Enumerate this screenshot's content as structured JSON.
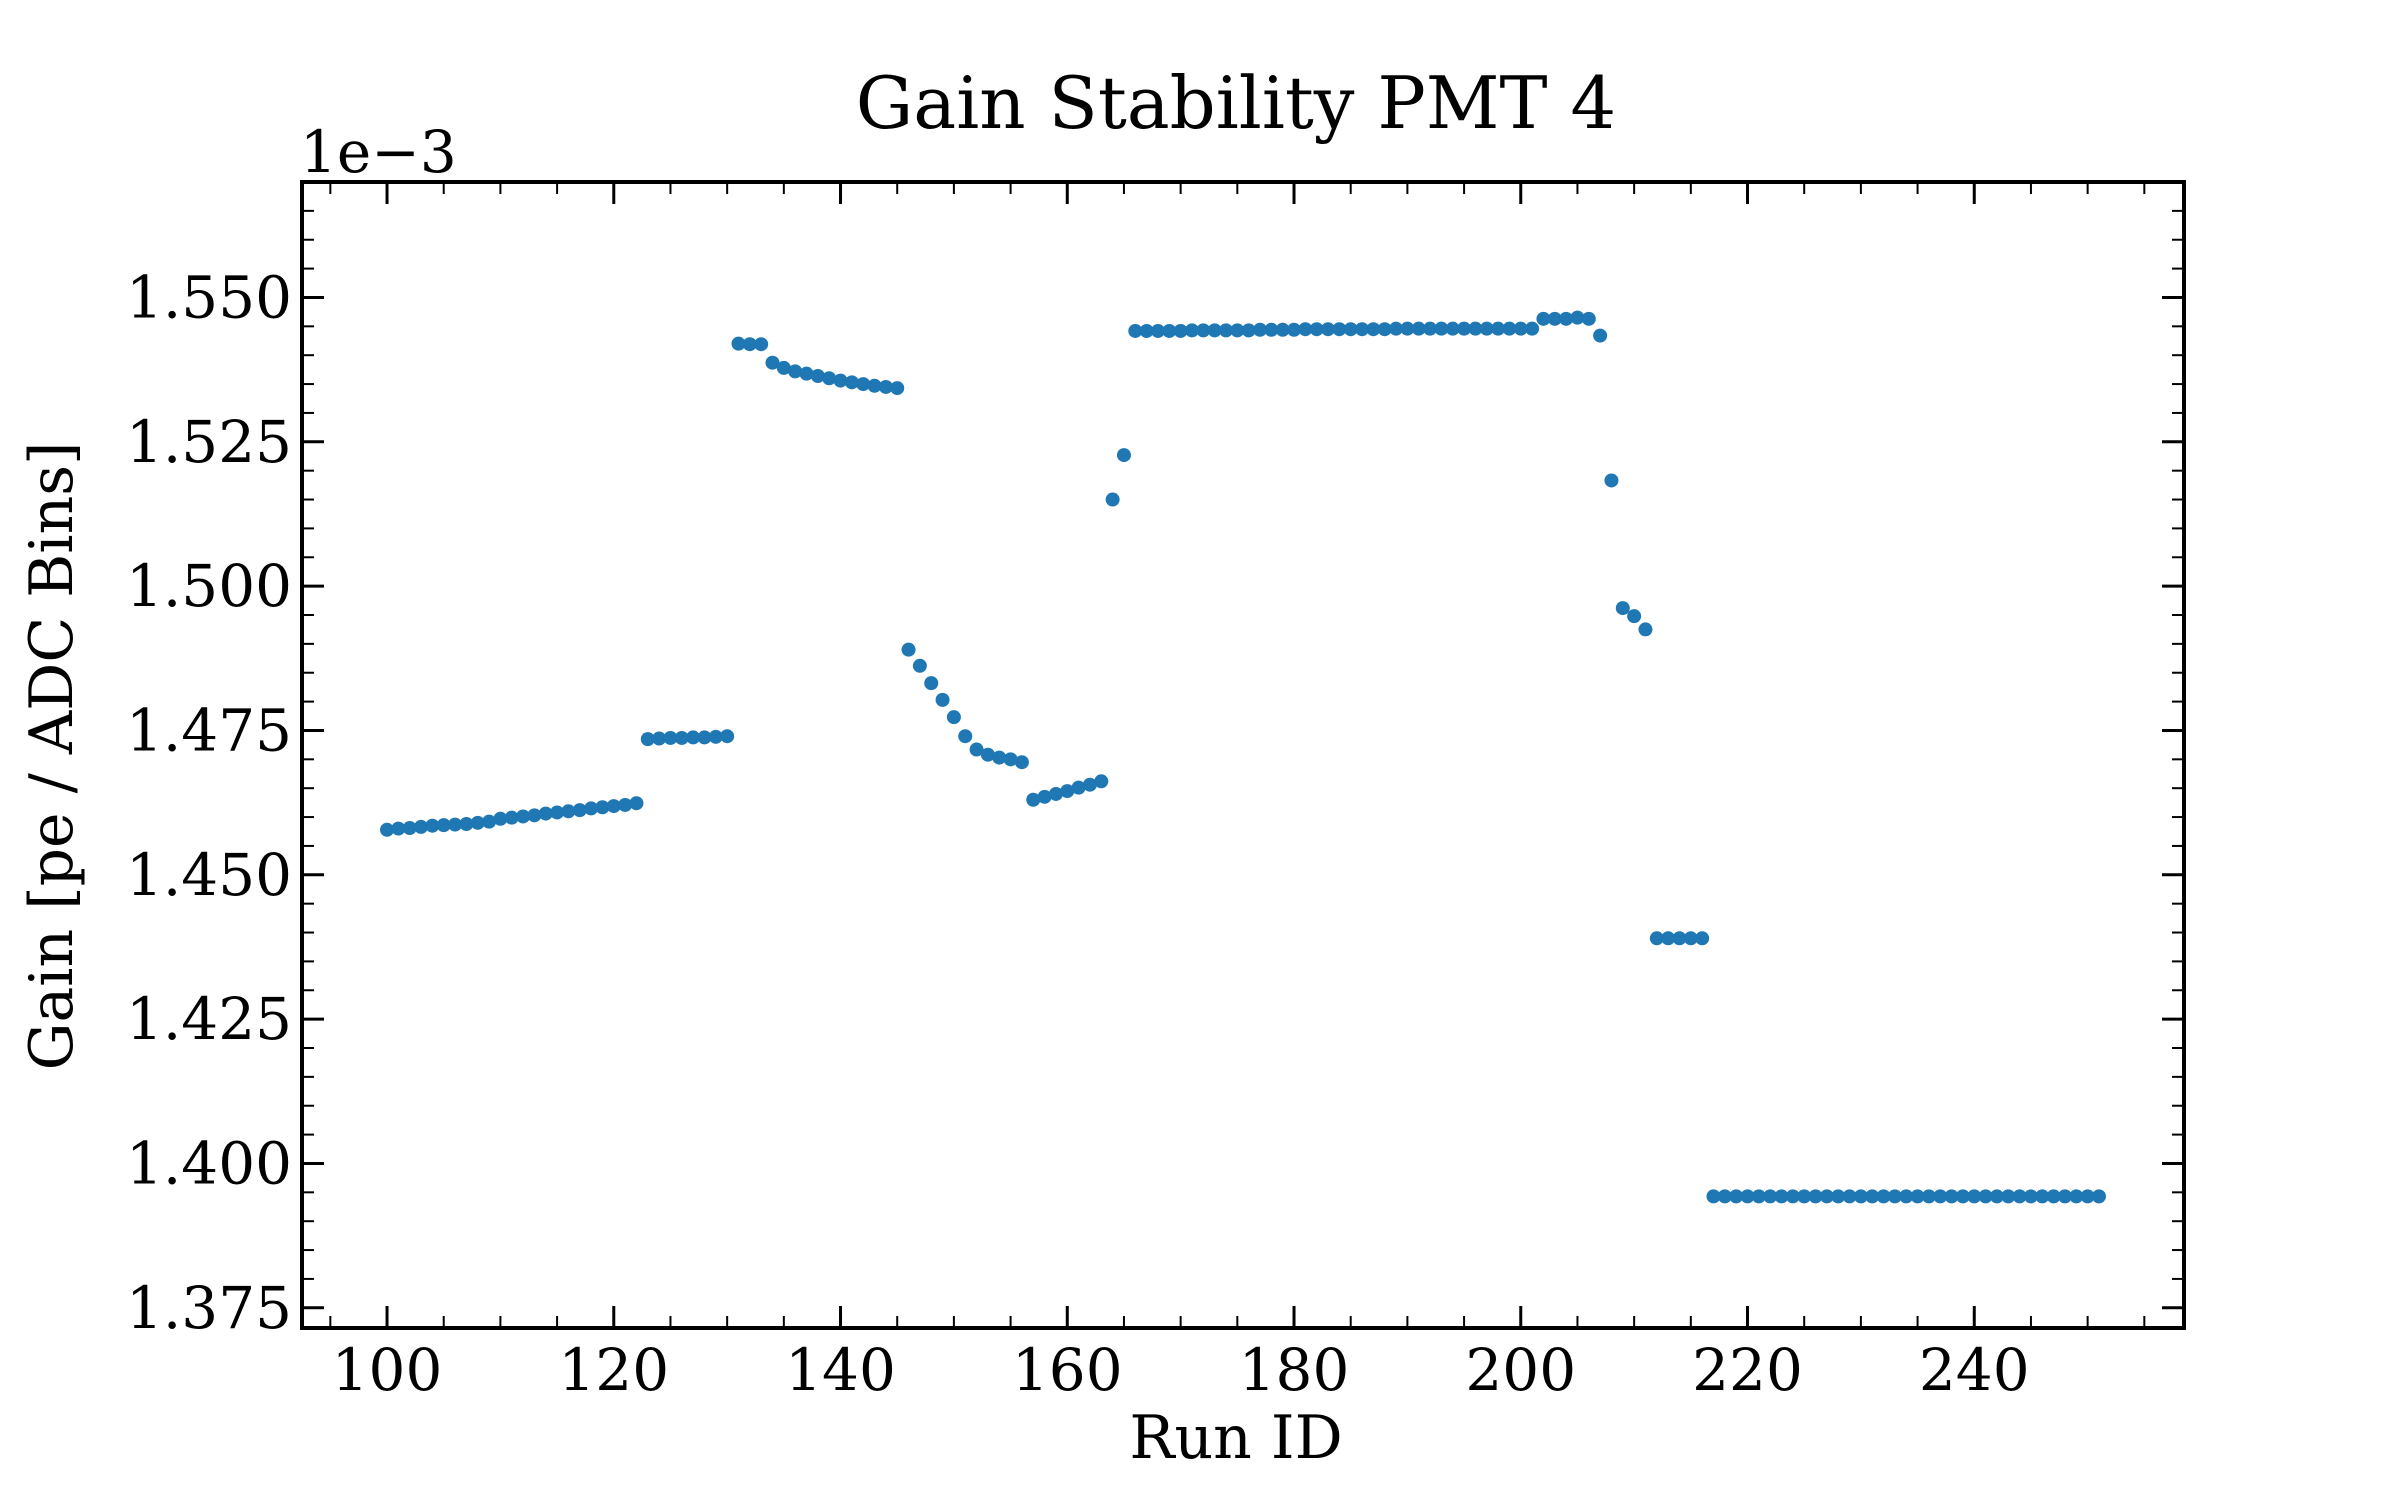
{
  "chart_data": {
    "type": "scatter",
    "title": "Gain Stability PMT 4",
    "xlabel": "Run ID",
    "ylabel": "Gain [pe / ADC Bins]",
    "y_offset_text": "1e−3",
    "xlim": [
      92.5,
      258.5
    ],
    "ylim": [
      1.3715,
      1.57
    ],
    "x_ticks": [
      100,
      120,
      140,
      160,
      180,
      200,
      220,
      240
    ],
    "x_tick_labels": [
      "100",
      "120",
      "140",
      "160",
      "180",
      "200",
      "220",
      "240"
    ],
    "y_ticks": [
      1.375,
      1.4,
      1.425,
      1.45,
      1.475,
      1.5,
      1.525,
      1.55
    ],
    "y_tick_labels": [
      "1.375",
      "1.400",
      "1.425",
      "1.450",
      "1.475",
      "1.500",
      "1.525",
      "1.550"
    ],
    "grid": false,
    "legend": "none",
    "marker_color": "#1f77b4",
    "series": [
      {
        "x": [
          100,
          101,
          102,
          103,
          104,
          105,
          106,
          107,
          108,
          109,
          110,
          111,
          112,
          113,
          114,
          115,
          116,
          117,
          118,
          119,
          120,
          121,
          122,
          123,
          124,
          125,
          126,
          127,
          128,
          129,
          130,
          131,
          132,
          133,
          134,
          135,
          136,
          137,
          138,
          139,
          140,
          141,
          142,
          143,
          144,
          145,
          146,
          147,
          148,
          149,
          150,
          151,
          152,
          153,
          154,
          155,
          156,
          157,
          158,
          159,
          160,
          161,
          162,
          163,
          164,
          165,
          166,
          167,
          168,
          169,
          170,
          171,
          172,
          173,
          174,
          175,
          176,
          177,
          178,
          179,
          180,
          181,
          182,
          183,
          184,
          185,
          186,
          187,
          188,
          189,
          190,
          191,
          192,
          193,
          194,
          195,
          196,
          197,
          198,
          199,
          200,
          201,
          202,
          203,
          204,
          205,
          206,
          207,
          208,
          209,
          210,
          211,
          212,
          213,
          214,
          215,
          216,
          217,
          218,
          219,
          220,
          221,
          222,
          223,
          224,
          225,
          226,
          227,
          228,
          229,
          230,
          231,
          232,
          233,
          234,
          235,
          236,
          237,
          238,
          239,
          240,
          241,
          242,
          243,
          244,
          245,
          246,
          247,
          248,
          249,
          250,
          251
        ],
        "y": [
          1.4578,
          1.458,
          1.4581,
          1.4583,
          1.4585,
          1.4586,
          1.4587,
          1.4588,
          1.459,
          1.4592,
          1.4597,
          1.4599,
          1.4601,
          1.4603,
          1.4606,
          1.4608,
          1.461,
          1.4612,
          1.4615,
          1.4617,
          1.4619,
          1.4621,
          1.4624,
          1.4735,
          1.4736,
          1.4737,
          1.4737,
          1.4738,
          1.4738,
          1.4739,
          1.474,
          1.542,
          1.5419,
          1.5419,
          1.5387,
          1.5378,
          1.5372,
          1.5368,
          1.5364,
          1.536,
          1.5356,
          1.5353,
          1.535,
          1.5347,
          1.5345,
          1.5343,
          1.489,
          1.4862,
          1.4832,
          1.4803,
          1.4773,
          1.474,
          1.4717,
          1.4708,
          1.4703,
          1.47,
          1.4695,
          1.463,
          1.4635,
          1.464,
          1.4645,
          1.4651,
          1.4656,
          1.4662,
          1.515,
          1.5227,
          1.5442,
          1.5442,
          1.5442,
          1.5442,
          1.5442,
          1.5443,
          1.5443,
          1.5443,
          1.5443,
          1.5443,
          1.5443,
          1.5444,
          1.5444,
          1.5444,
          1.5444,
          1.5445,
          1.5445,
          1.5445,
          1.5445,
          1.5445,
          1.5445,
          1.5445,
          1.5445,
          1.5446,
          1.5446,
          1.5446,
          1.5446,
          1.5446,
          1.5446,
          1.5446,
          1.5446,
          1.5446,
          1.5446,
          1.5446,
          1.5446,
          1.5446,
          1.5463,
          1.5463,
          1.5463,
          1.5465,
          1.5463,
          1.5434,
          1.5183,
          1.4962,
          1.4948,
          1.4925,
          1.439,
          1.439,
          1.439,
          1.439,
          1.439,
          1.3943,
          1.3943,
          1.3943,
          1.3943,
          1.3943,
          1.3943,
          1.3943,
          1.3943,
          1.3943,
          1.3943,
          1.3943,
          1.3943,
          1.3943,
          1.3943,
          1.3943,
          1.3943,
          1.3943,
          1.3943,
          1.3943,
          1.3943,
          1.3943,
          1.3943,
          1.3943,
          1.3943,
          1.3943,
          1.3943,
          1.3943,
          1.3943,
          1.3943,
          1.3943,
          1.3943,
          1.3943,
          1.3943,
          1.3943,
          1.3943
        ]
      }
    ]
  }
}
